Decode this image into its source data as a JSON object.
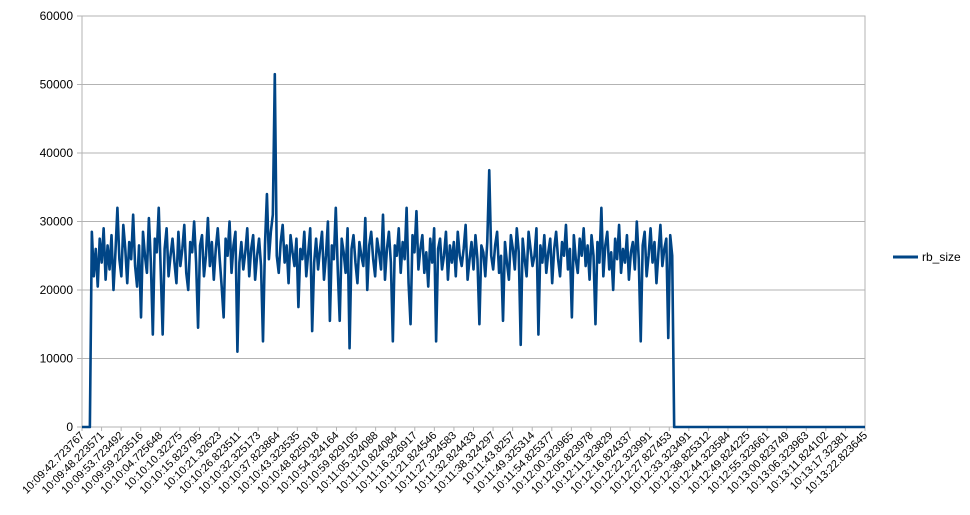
{
  "chart_data": {
    "type": "line",
    "title": "",
    "xlabel": "",
    "ylabel": "",
    "ylim": [
      0,
      60000
    ],
    "yticks": [
      0,
      10000,
      20000,
      30000,
      40000,
      50000,
      60000
    ],
    "grid": "horizontal",
    "legend_position": "right",
    "x_tick_labels": [
      "10:09:42.723767",
      "10:09:48.223571",
      "10:09:53.723492",
      "10:09:59.223516",
      "10:10:04.725648",
      "10:10:10.32275",
      "10:10:15.823795",
      "10:10:21.32623",
      "10:10:26.823511",
      "10:10:32.325173",
      "10:10:37.823864",
      "10:10:43.323535",
      "10:10:48.825018",
      "10:10:54.324164",
      "10:10:59.829105",
      "10:11:05.324088",
      "10:11:10.824084",
      "10:11:16.326917",
      "10:11:21.824546",
      "10:11:27.324583",
      "10:11:32.824433",
      "10:11:38.324297",
      "10:11:43.8257",
      "10:11:49.325314",
      "10:11:54.825377",
      "10:12:00.323965",
      "10:12:05.823978",
      "10:12:11.323829",
      "10:12:16.824337",
      "10:12:22.323991",
      "10:12:27.827453",
      "10:12:33.323491",
      "10:12:38.825312",
      "10:12:44.323584",
      "10:12:49.824225",
      "10:12:55.323661",
      "10:13:00.823749",
      "10:13:06.323963",
      "10:13:11.824102",
      "10:13:17.32381",
      "10:13:22.823645"
    ],
    "series": [
      {
        "name": "rb_size",
        "color": "#004586",
        "values": [
          0,
          0,
          0,
          0,
          0,
          28500,
          22000,
          26000,
          20500,
          27500,
          24000,
          29000,
          21500,
          26500,
          23000,
          28000,
          20000,
          25500,
          32000,
          24500,
          22000,
          29500,
          26000,
          21000,
          27000,
          24500,
          31000,
          23500,
          20500,
          26500,
          16000,
          28500,
          25000,
          22500,
          30500,
          24000,
          13500,
          27500,
          25500,
          32000,
          23000,
          13500,
          26000,
          29000,
          22000,
          25000,
          27500,
          24000,
          21000,
          28500,
          23500,
          26000,
          29500,
          22500,
          20000,
          27000,
          25500,
          30000,
          24000,
          14500,
          26500,
          28000,
          22000,
          25000,
          30500,
          23500,
          27000,
          21500,
          26000,
          29000,
          24500,
          20500,
          16000,
          27500,
          25000,
          30000,
          22500,
          26500,
          28500,
          11000,
          24000,
          27000,
          23000,
          25500,
          29000,
          22000,
          26000,
          28000,
          21500,
          25000,
          27500,
          23500,
          12500,
          26500,
          34000,
          24500,
          28500,
          31000,
          51500,
          25000,
          22500,
          27000,
          29500,
          24000,
          26500,
          21000,
          28000,
          25500,
          23500,
          27500,
          17500,
          26000,
          24500,
          28500,
          22000,
          25500,
          29000,
          14000,
          24000,
          27500,
          23000,
          26000,
          28500,
          21500,
          25000,
          30000,
          15500,
          26500,
          24500,
          32000,
          23000,
          15500,
          27500,
          25500,
          22500,
          29000,
          11500,
          26000,
          28000,
          24000,
          21000,
          27000,
          25000,
          23500,
          30500,
          20000,
          26500,
          28500,
          24500,
          22000,
          27500,
          25500,
          23000,
          31000,
          21500,
          26000,
          28500,
          24000,
          12500,
          26500,
          25000,
          29000,
          22500,
          27000,
          24500,
          32000,
          21000,
          15000,
          28000,
          25500,
          31500,
          23000,
          26000,
          28000,
          22500,
          25500,
          20500,
          27500,
          24000,
          29000,
          12500,
          26000,
          27500,
          23000,
          25000,
          28500,
          21500,
          26500,
          24000,
          27000,
          22000,
          28500,
          25000,
          23500,
          26000,
          29500,
          21500,
          24500,
          27000,
          23000,
          28000,
          24500,
          15000,
          26500,
          25500,
          22000,
          27000,
          37500,
          25000,
          23000,
          26500,
          28500,
          22500,
          25000,
          15500,
          27000,
          24000,
          21500,
          28000,
          26000,
          23000,
          29000,
          25500,
          12000,
          27500,
          24500,
          22000,
          28500,
          26000,
          23500,
          25000,
          29000,
          13500,
          26500,
          24000,
          28000,
          22500,
          25500,
          27500,
          21000,
          26000,
          28500,
          24500,
          22000,
          27000,
          25000,
          29500,
          23000,
          26000,
          16000,
          28000,
          24500,
          22500,
          27500,
          25000,
          29000,
          23500,
          26500,
          21500,
          28000,
          25000,
          15000,
          27000,
          24000,
          32000,
          22000,
          26500,
          28500,
          23000,
          25500,
          20000,
          27500,
          24500,
          29500,
          22500,
          26000,
          24000,
          28000,
          21500,
          25500,
          27000,
          23000,
          30000,
          24500,
          12500,
          26500,
          28500,
          22000,
          25000,
          29000,
          24000,
          27000,
          21000,
          25500,
          29500,
          23500,
          26000,
          27500,
          13000,
          28000,
          25000,
          0,
          0,
          0,
          0,
          0,
          0,
          0,
          0,
          0,
          0,
          0,
          0,
          0,
          0,
          0,
          0,
          0,
          0,
          0,
          0,
          0,
          0,
          0,
          0,
          0,
          0,
          0,
          0,
          0,
          0,
          0,
          0,
          0,
          0,
          0,
          0,
          0,
          0,
          0,
          0,
          0,
          0,
          0,
          0,
          0,
          0,
          0,
          0,
          0,
          0,
          0,
          0,
          0,
          0,
          0,
          0,
          0,
          0,
          0,
          0,
          0,
          0,
          0,
          0,
          0,
          0,
          0,
          0,
          0,
          0,
          0,
          0,
          0,
          0,
          0,
          0,
          0,
          0,
          0,
          0,
          0,
          0,
          0,
          0,
          0,
          0,
          0,
          0,
          0,
          0,
          0,
          0,
          0,
          0,
          0,
          0,
          0,
          0
        ]
      }
    ]
  }
}
